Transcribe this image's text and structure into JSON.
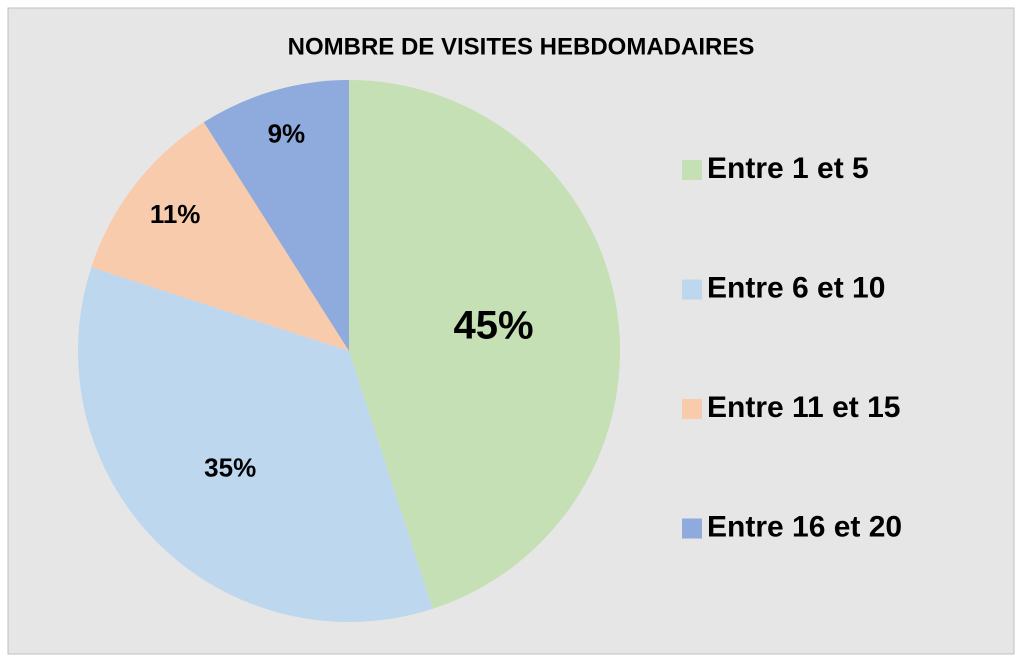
{
  "chart_data": {
    "type": "pie",
    "title": "NOMBRE DE VISITES HEBDOMADAIRES",
    "categories": [
      "Entre 1 et 5",
      "Entre 6 et 10",
      "Entre 11 et 15",
      "Entre 16 et 20"
    ],
    "values": [
      45,
      35,
      11,
      9
    ],
    "value_labels": [
      "45%",
      "35%",
      "11%",
      "9%"
    ],
    "colors": [
      "#c5e0b4",
      "#bdd7ee",
      "#f8cbad",
      "#8faadc"
    ],
    "legend": "right"
  }
}
